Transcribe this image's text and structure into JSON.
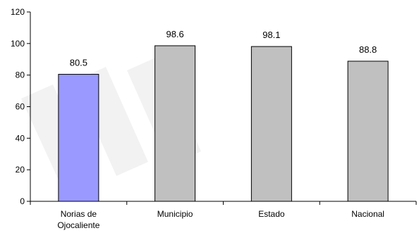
{
  "chart_data": {
    "type": "bar",
    "categories": [
      "Norias de Ojocaliente",
      "Municipio",
      "Estado",
      "Nacional"
    ],
    "category_lines": [
      [
        "Norias de",
        "Ojocaliente"
      ],
      [
        "Municipio"
      ],
      [
        "Estado"
      ],
      [
        "Nacional"
      ]
    ],
    "values": [
      80.5,
      98.6,
      98.1,
      88.8
    ],
    "value_labels": [
      "80.5",
      "98.6",
      "98.1",
      "88.8"
    ],
    "ylim": [
      0,
      120
    ],
    "yticks": [
      0,
      20,
      40,
      60,
      80,
      100,
      120
    ],
    "ytick_labels": [
      "0",
      "20",
      "40",
      "60",
      "80",
      "100",
      "120"
    ],
    "grid": false,
    "legend": "none",
    "bar_colors": [
      "#9999ff",
      "#c0c0c0",
      "#c0c0c0",
      "#c0c0c0"
    ],
    "bar_stroke": "#000000",
    "axis_color": "#000000",
    "watermark_color": "#d9d9d9"
  }
}
